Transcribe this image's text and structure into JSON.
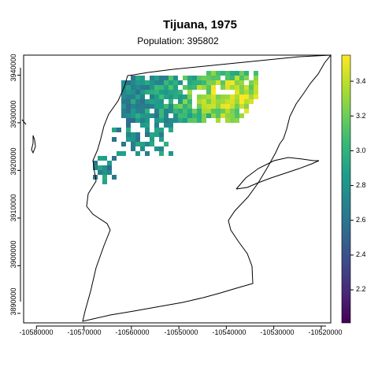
{
  "title": "Tijuana, 1975",
  "subtitle": "Population: 395802",
  "chart_data": {
    "type": "heatmap",
    "title": "Tijuana, 1975",
    "subtitle": "Population: 395802",
    "x_ticks": [
      "-10580000",
      "-10570000",
      "-10560000",
      "-10550000",
      "-10540000",
      "-10530000",
      "-10520000"
    ],
    "x_tick_values": [
      -10580000,
      -10570000,
      -10560000,
      -10550000,
      -10540000,
      -10530000,
      -10520000
    ],
    "y_ticks": [
      "3890000",
      "3900000",
      "3910000",
      "3920000",
      "3930000",
      "3940000"
    ],
    "y_tick_values": [
      3890000,
      3900000,
      3910000,
      3920000,
      3930000,
      3940000
    ],
    "xlim": [
      -10582700,
      -10518000
    ],
    "ylim": [
      3888000,
      3944200
    ],
    "legend": {
      "position": "right",
      "range": [
        2.01,
        3.55
      ],
      "ticks": [
        "2.2",
        "2.4",
        "2.6",
        "2.8",
        "3.0",
        "3.2",
        "3.4"
      ],
      "tick_values": [
        2.2,
        2.4,
        2.6,
        2.8,
        3.0,
        3.2,
        3.4
      ],
      "palette": [
        "#440154",
        "#482878",
        "#3e4989",
        "#31688e",
        "#26828e",
        "#1f9e89",
        "#35b779",
        "#6ece58",
        "#b5de2b",
        "#fde725"
      ]
    },
    "cell_size": 1000
  }
}
